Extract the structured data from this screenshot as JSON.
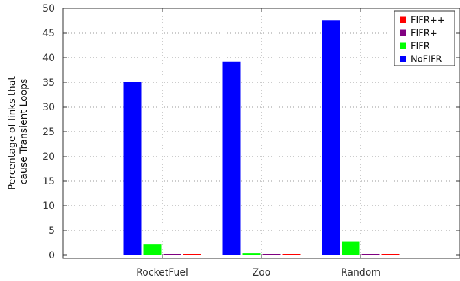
{
  "chart_data": {
    "type": "bar",
    "title": "",
    "xlabel": "",
    "ylabel": [
      "Percentage of links that",
      "cause Transient Loops"
    ],
    "categories": [
      "RocketFuel",
      "Zoo",
      "Random"
    ],
    "ylim": [
      0,
      50
    ],
    "yticks": [
      0,
      5,
      10,
      15,
      20,
      25,
      30,
      35,
      40,
      45,
      50
    ],
    "grid": true,
    "legend_position": "top-right",
    "series": [
      {
        "name": "NoFIFR",
        "color": "#0000ff",
        "values": [
          35.1,
          39.2,
          47.6
        ]
      },
      {
        "name": "FIFR",
        "color": "#00ff00",
        "values": [
          2.2,
          0.4,
          2.7
        ]
      },
      {
        "name": "FIFR+",
        "color": "#800080",
        "values": [
          0.1,
          0.1,
          0.1
        ]
      },
      {
        "name": "FIFR++",
        "color": "#ff0000",
        "values": [
          0.1,
          0.1,
          0.1
        ]
      }
    ],
    "legend_order": [
      "FIFR++",
      "FIFR+",
      "FIFR",
      "NoFIFR"
    ]
  }
}
